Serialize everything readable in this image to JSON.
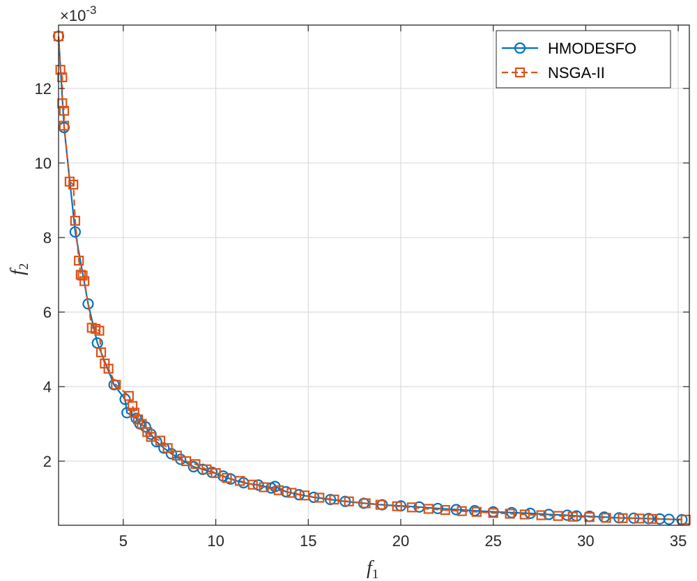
{
  "chart_data": {
    "type": "line",
    "xlabel": "f",
    "xlabel_sub": "1",
    "ylabel": "f",
    "ylabel_sub": "2",
    "y_exponent_prefix": "×10",
    "y_exponent": "-3",
    "xlim": [
      1.5,
      35.6
    ],
    "ylim": [
      0.28,
      13.7
    ],
    "y_scale_note": "values in units of 1e-3",
    "xticks": [
      "5",
      "10",
      "15",
      "20",
      "25",
      "30",
      "35"
    ],
    "yticks": [
      "2",
      "4",
      "6",
      "8",
      "10",
      "12"
    ],
    "grid": true,
    "legend_position": "top-right",
    "series": [
      {
        "name": "HMODESFO",
        "color": "#0072BD",
        "marker": "circle",
        "line": "solid",
        "x": [
          1.5,
          1.8,
          2.4,
          3.1,
          3.6,
          4.5,
          5.1,
          5.2,
          5.7,
          5.9,
          6.2,
          6.5,
          6.8,
          7.2,
          7.6,
          8.1,
          8.8,
          9.3,
          9.8,
          10.4,
          10.8,
          11.5,
          12.3,
          13.0,
          13.2,
          13.8,
          14.5,
          15.3,
          16.2,
          17.0,
          18.0,
          19.0,
          20.0,
          21.0,
          22.0,
          23.0,
          24.0,
          25.0,
          26.0,
          27.0,
          28.0,
          29.0,
          29.5,
          30.2,
          31.0,
          31.8,
          32.6,
          33.4,
          34.0,
          34.5,
          35.2
        ],
        "y": [
          13.4,
          10.95,
          8.15,
          6.22,
          5.17,
          4.05,
          3.66,
          3.3,
          3.15,
          3.0,
          2.92,
          2.72,
          2.52,
          2.35,
          2.2,
          2.05,
          1.85,
          1.78,
          1.7,
          1.6,
          1.52,
          1.42,
          1.36,
          1.28,
          1.32,
          1.18,
          1.1,
          1.03,
          0.97,
          0.92,
          0.87,
          0.83,
          0.8,
          0.77,
          0.73,
          0.7,
          0.67,
          0.64,
          0.62,
          0.6,
          0.57,
          0.55,
          0.53,
          0.52,
          0.5,
          0.48,
          0.47,
          0.46,
          0.45,
          0.44,
          0.43
        ]
      },
      {
        "name": "NSGA-II",
        "color": "#D95319",
        "marker": "square",
        "line": "dashed",
        "x": [
          1.5,
          1.6,
          1.7,
          1.7,
          1.8,
          1.8,
          2.1,
          2.3,
          2.4,
          2.6,
          2.7,
          2.8,
          2.9,
          3.3,
          3.5,
          3.7,
          3.8,
          4.0,
          4.2,
          4.6,
          5.3,
          5.5,
          5.6,
          5.8,
          6.0,
          6.3,
          6.5,
          7.0,
          7.4,
          7.9,
          8.4,
          8.9,
          9.5,
          10.0,
          10.6,
          11.3,
          12.0,
          12.6,
          13.4,
          14.1,
          14.8,
          15.6,
          16.4,
          17.2,
          18.1,
          18.9,
          19.8,
          20.6,
          21.5,
          22.4,
          23.3,
          24.1,
          25.0,
          25.9,
          26.7,
          27.6,
          28.5,
          29.3,
          30.2,
          31.1,
          32.0,
          32.9,
          33.6,
          35.4
        ],
        "y": [
          13.4,
          12.5,
          12.3,
          11.6,
          11.4,
          11.0,
          9.5,
          9.42,
          8.45,
          7.38,
          7.0,
          6.98,
          6.83,
          5.58,
          5.55,
          5.5,
          4.92,
          4.62,
          4.48,
          4.05,
          3.75,
          3.48,
          3.3,
          3.12,
          3.0,
          2.78,
          2.65,
          2.55,
          2.35,
          2.15,
          2.0,
          1.92,
          1.78,
          1.68,
          1.55,
          1.47,
          1.37,
          1.3,
          1.22,
          1.15,
          1.08,
          1.02,
          0.97,
          0.92,
          0.87,
          0.83,
          0.79,
          0.76,
          0.72,
          0.69,
          0.66,
          0.64,
          0.61,
          0.59,
          0.57,
          0.55,
          0.53,
          0.51,
          0.5,
          0.48,
          0.47,
          0.46,
          0.45,
          0.43
        ]
      }
    ]
  }
}
